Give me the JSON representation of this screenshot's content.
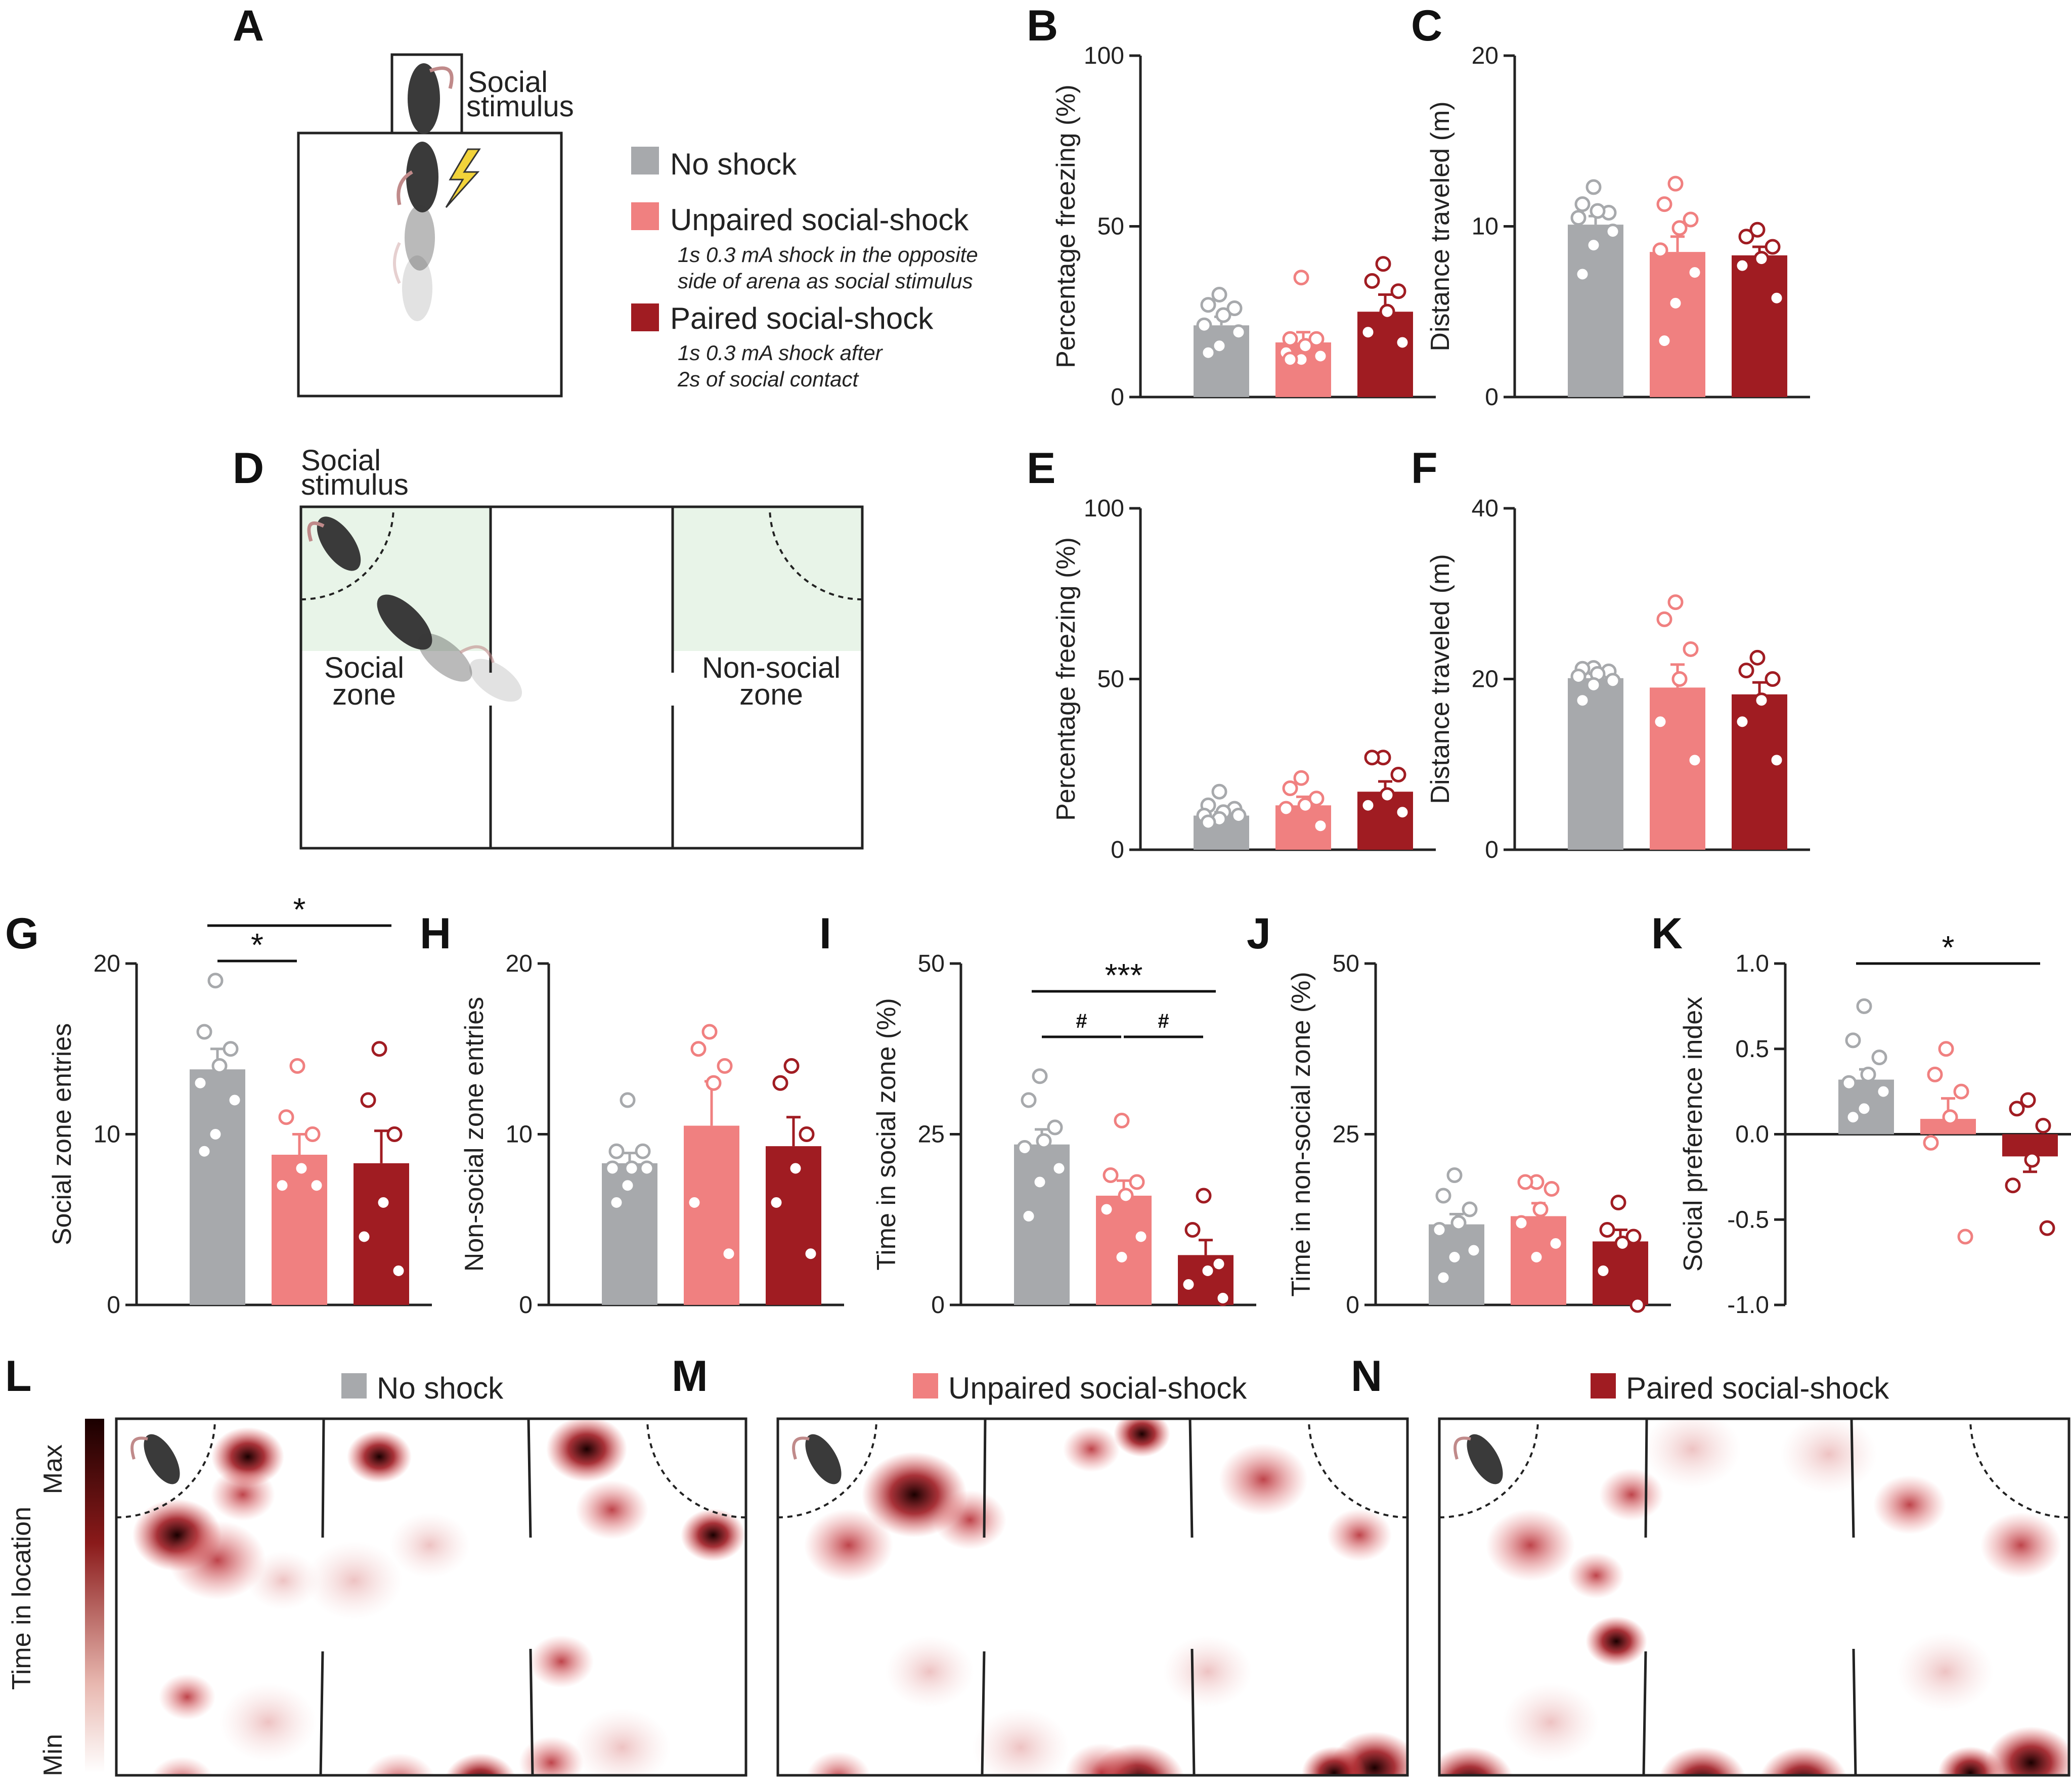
{
  "colors": {
    "no_shock": "#a7a9ac",
    "unpaired": "#f08080",
    "paired": "#a01c22",
    "zone_fill": "#e8f4e8",
    "heat_dark": "#1a0000",
    "heat_mid": "#c0262e"
  },
  "panel_letters": [
    "A",
    "B",
    "C",
    "D",
    "E",
    "F",
    "G",
    "H",
    "I",
    "J",
    "K",
    "L",
    "M",
    "N"
  ],
  "legend": {
    "no_shock": "No shock",
    "unpaired": "Unpaired social-shock",
    "unpaired_desc1": "1s 0.3 mA shock in the opposite",
    "unpaired_desc2": "side of arena as social stimulus",
    "paired": "Paired social-shock",
    "paired_desc1": "1s 0.3 mA shock after",
    "paired_desc2": "2s of social contact"
  },
  "diagram_a": {
    "label1": "Social",
    "label2": "stimulus"
  },
  "diagram_d": {
    "stim1": "Social",
    "stim2": "stimulus",
    "social1": "Social",
    "social2": "zone",
    "nonsocial1": "Non-social",
    "nonsocial2": "zone"
  },
  "heatmaps": {
    "scale_max": "Max",
    "scale_min": "Min",
    "scale_label": "Time in location",
    "titles": [
      "No shock",
      "Unpaired social-shock",
      "Paired social-shock"
    ]
  },
  "chart_data": [
    {
      "panel": "B",
      "type": "bar",
      "ylabel": "Percentage freezing (%)",
      "ylim": [
        0,
        100
      ],
      "yticks": [
        "0",
        "50",
        "100"
      ],
      "categories": [
        "No shock",
        "Unpaired social-shock",
        "Paired social-shock"
      ],
      "values": [
        21,
        16,
        25
      ],
      "sem": [
        2.5,
        3,
        5
      ],
      "points": [
        [
          30,
          27,
          26,
          24,
          21,
          19,
          15,
          13
        ],
        [
          35,
          17,
          17,
          15,
          13,
          12,
          11,
          11
        ],
        [
          39,
          34,
          31,
          25,
          19,
          16
        ]
      ]
    },
    {
      "panel": "C",
      "type": "bar",
      "ylabel": "Distance traveled (m)",
      "ylim": [
        0,
        20
      ],
      "yticks": [
        "0",
        "10",
        "20"
      ],
      "categories": [
        "No shock",
        "Unpaired social-shock",
        "Paired social-shock"
      ],
      "values": [
        10.1,
        8.5,
        8.3
      ],
      "sem": [
        0.5,
        0.9,
        0.5
      ],
      "points": [
        [
          12.3,
          11.3,
          10.8,
          10.9,
          10.5,
          9.7,
          8.9,
          7.2
        ],
        [
          12.5,
          11.3,
          10.4,
          9.9,
          8.6,
          7.3,
          5.5,
          3.3
        ],
        [
          9.8,
          9.4,
          8.8,
          8.1,
          7.7,
          5.8
        ]
      ]
    },
    {
      "panel": "E",
      "type": "bar",
      "ylabel": "Percentage freezing (%)",
      "ylim": [
        0,
        100
      ],
      "yticks": [
        "0",
        "50",
        "100"
      ],
      "categories": [
        "No shock",
        "Unpaired social-shock",
        "Paired social-shock"
      ],
      "values": [
        10,
        13,
        17
      ],
      "sem": [
        1,
        2.5,
        3
      ],
      "points": [
        [
          17,
          13,
          12,
          11,
          10,
          10,
          9,
          8
        ],
        [
          21,
          18,
          15,
          13,
          12,
          7
        ],
        [
          27,
          27,
          22,
          16,
          13,
          11
        ]
      ]
    },
    {
      "panel": "F",
      "type": "bar",
      "ylabel": "Distance traveled (m)",
      "ylim": [
        0,
        40
      ],
      "yticks": [
        "0",
        "20",
        "40"
      ],
      "categories": [
        "No shock",
        "Unpaired social-shock",
        "Paired social-shock"
      ],
      "values": [
        20.1,
        19.0,
        18.2
      ],
      "sem": [
        0.5,
        2.7,
        1.4
      ],
      "points": [
        [
          21.3,
          21.2,
          20.9,
          20.6,
          20.3,
          19.8,
          19.3,
          17.5
        ],
        [
          29,
          27,
          23.5,
          20,
          15,
          10.5
        ],
        [
          22.5,
          21,
          20,
          17.5,
          15,
          10.5
        ]
      ]
    },
    {
      "panel": "G",
      "type": "bar",
      "ylabel": "Social zone entries",
      "ylim": [
        0,
        20
      ],
      "yticks": [
        "0",
        "10",
        "20"
      ],
      "categories": [
        "No shock",
        "Unpaired social-shock",
        "Paired social-shock"
      ],
      "values": [
        13.8,
        8.8,
        8.3
      ],
      "sem": [
        1.2,
        1.2,
        1.9
      ],
      "points": [
        [
          19,
          16,
          15,
          14,
          13,
          12,
          10,
          9
        ],
        [
          14,
          11,
          10,
          8,
          7,
          7
        ],
        [
          15,
          12,
          10,
          6,
          4,
          2
        ]
      ],
      "significance": [
        {
          "from": 0,
          "to": 1,
          "label": "*"
        },
        {
          "from": 0,
          "to": 2,
          "label": "*"
        }
      ]
    },
    {
      "panel": "H",
      "type": "bar",
      "ylabel": "Non-social zone entries",
      "ylim": [
        0,
        20
      ],
      "yticks": [
        "0",
        "10",
        "20"
      ],
      "categories": [
        "No shock",
        "Unpaired social-shock",
        "Paired social-shock"
      ],
      "values": [
        8.3,
        10.5,
        9.3
      ],
      "sem": [
        0.6,
        2.6,
        1.7
      ],
      "points": [
        [
          12,
          9,
          9,
          8,
          8,
          8,
          7,
          6
        ],
        [
          16,
          15,
          14,
          13,
          6,
          3
        ],
        [
          14,
          13,
          10,
          8,
          6,
          3
        ]
      ]
    },
    {
      "panel": "I",
      "type": "bar",
      "ylabel": "Time in social zone (%)",
      "ylim": [
        0,
        50
      ],
      "yticks": [
        "0",
        "25",
        "50"
      ],
      "categories": [
        "No shock",
        "Unpaired social-shock",
        "Paired social-shock"
      ],
      "values": [
        23.5,
        16,
        7.3
      ],
      "sem": [
        2.2,
        2.2,
        2.2
      ],
      "points": [
        [
          33.5,
          30,
          26,
          24,
          23,
          20,
          18,
          13
        ],
        [
          27,
          19,
          18,
          16,
          14,
          10,
          7
        ],
        [
          16,
          11,
          6,
          5,
          3,
          1
        ]
      ],
      "significance": [
        {
          "from": 0,
          "to": 1,
          "label": "#"
        },
        {
          "from": 1,
          "to": 2,
          "label": "#"
        },
        {
          "from": 0,
          "to": 2,
          "label": "***"
        }
      ]
    },
    {
      "panel": "J",
      "type": "bar",
      "ylabel": "Time in non-social zone (%)",
      "ylim": [
        0,
        50
      ],
      "yticks": [
        "0",
        "25",
        "50"
      ],
      "categories": [
        "No shock",
        "Unpaired social-shock",
        "Paired social-shock"
      ],
      "values": [
        11.8,
        13.0,
        9.3
      ],
      "sem": [
        1.5,
        1.9,
        1.7
      ],
      "points": [
        [
          19,
          16,
          14,
          12,
          11,
          8,
          7,
          4
        ],
        [
          18,
          18,
          17,
          14,
          12,
          9,
          7
        ],
        [
          15,
          11,
          10,
          9,
          5,
          0
        ]
      ]
    },
    {
      "panel": "K",
      "type": "bar",
      "ylabel": "Social preference index",
      "ylim": [
        -1,
        1
      ],
      "yticks": [
        "-1.0",
        "-0.5",
        "0.0",
        "0.5",
        "1.0"
      ],
      "categories": [
        "No shock",
        "Unpaired social-shock",
        "Paired social-shock"
      ],
      "values": [
        0.32,
        0.09,
        -0.13
      ],
      "sem": [
        0.06,
        0.12,
        0.09
      ],
      "points": [
        [
          0.75,
          0.55,
          0.45,
          0.35,
          0.3,
          0.25,
          0.15,
          0.1
        ],
        [
          0.5,
          0.35,
          0.25,
          0.1,
          -0.05,
          -0.6
        ],
        [
          0.2,
          0.15,
          0.05,
          -0.15,
          -0.3,
          -0.55
        ]
      ],
      "significance": [
        {
          "from": 0,
          "to": 2,
          "label": "*"
        }
      ]
    }
  ]
}
